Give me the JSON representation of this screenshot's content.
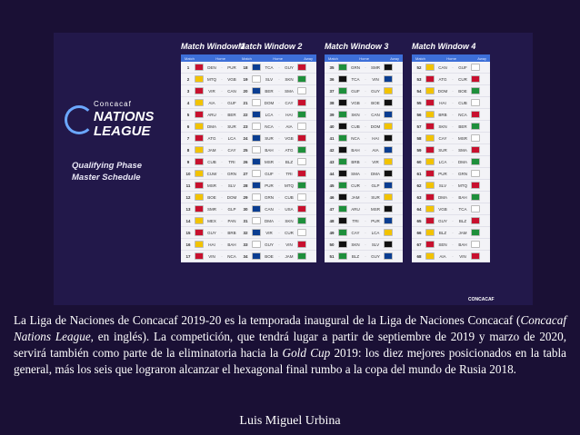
{
  "poster": {
    "logo_small": "Concacaf",
    "logo_word1": "NATIONS",
    "logo_word2": "LEAGUE",
    "schedule_title_line1": "Qualifying Phase",
    "schedule_title_line2": "Master Schedule",
    "footer_logo": "CONCACAF",
    "col_match": "Match",
    "col_home": "Home",
    "col_away": "Away",
    "windows": [
      {
        "title": "Match Window 1",
        "rows": [
          {
            "n": "1",
            "h": "DEN",
            "a": "PUR"
          },
          {
            "n": "2",
            "h": "MTQ",
            "a": "VGB"
          },
          {
            "n": "3",
            "h": "VIR",
            "a": "CAN"
          },
          {
            "n": "4",
            "h": "AIA",
            "a": "GUF"
          },
          {
            "n": "5",
            "h": "ARU",
            "a": "BER"
          },
          {
            "n": "6",
            "h": "DMA",
            "a": "SUR"
          },
          {
            "n": "7",
            "h": "ATG",
            "a": "LCA"
          },
          {
            "n": "8",
            "h": "JAM",
            "a": "CAY"
          },
          {
            "n": "9",
            "h": "CUB",
            "a": "TRI"
          },
          {
            "n": "10",
            "h": "CUW",
            "a": "GRN"
          },
          {
            "n": "11",
            "h": "MSR",
            "a": "SLV"
          },
          {
            "n": "12",
            "h": "BOE",
            "a": "DOM"
          },
          {
            "n": "13",
            "h": "SMR",
            "a": "GLP"
          },
          {
            "n": "14",
            "h": "MEX",
            "a": "PAN"
          },
          {
            "n": "15",
            "h": "GUY",
            "a": "BRB"
          },
          {
            "n": "16",
            "h": "HAI",
            "a": "BAH"
          },
          {
            "n": "17",
            "h": "VIN",
            "a": "NCA"
          }
        ]
      },
      {
        "title": "Match Window 2",
        "rows": [
          {
            "n": "18",
            "h": "TCA",
            "a": "GUY"
          },
          {
            "n": "19",
            "h": "SLV",
            "a": "SKN"
          },
          {
            "n": "20",
            "h": "BER",
            "a": "SMA"
          },
          {
            "n": "21",
            "h": "DOM",
            "a": "CAY"
          },
          {
            "n": "22",
            "h": "LCA",
            "a": "HAI"
          },
          {
            "n": "23",
            "h": "NCA",
            "a": "AIA"
          },
          {
            "n": "24",
            "h": "SUR",
            "a": "VGB"
          },
          {
            "n": "25",
            "h": "BAH",
            "a": "ATG"
          },
          {
            "n": "26",
            "h": "MSR",
            "a": "BLZ"
          },
          {
            "n": "27",
            "h": "GUF",
            "a": "TRI"
          },
          {
            "n": "28",
            "h": "PUR",
            "a": "MTQ"
          },
          {
            "n": "29",
            "h": "GRN",
            "a": "CUB"
          },
          {
            "n": "30",
            "h": "CAN",
            "a": "USA"
          },
          {
            "n": "31",
            "h": "DMA",
            "a": "SKN"
          },
          {
            "n": "32",
            "h": "VIR",
            "a": "CUR"
          },
          {
            "n": "33",
            "h": "GUY",
            "a": "VIN"
          },
          {
            "n": "34",
            "h": "BOE",
            "a": "JAM"
          }
        ]
      },
      {
        "title": "Match Window 3",
        "rows": [
          {
            "n": "35",
            "h": "GRN",
            "a": "SMR"
          },
          {
            "n": "36",
            "h": "TCA",
            "a": "VIN"
          },
          {
            "n": "37",
            "h": "GUF",
            "a": "GUY"
          },
          {
            "n": "38",
            "h": "VGB",
            "a": "BOE"
          },
          {
            "n": "39",
            "h": "SKN",
            "a": "CAN"
          },
          {
            "n": "40",
            "h": "CUB",
            "a": "DOM"
          },
          {
            "n": "41",
            "h": "NCA",
            "a": "HAI"
          },
          {
            "n": "42",
            "h": "BAH",
            "a": "AIA"
          },
          {
            "n": "43",
            "h": "BRB",
            "a": "VIR"
          },
          {
            "n": "44",
            "h": "SMA",
            "a": "DMA"
          },
          {
            "n": "45",
            "h": "CUR",
            "a": "GLP"
          },
          {
            "n": "46",
            "h": "JAM",
            "a": "SUR"
          },
          {
            "n": "47",
            "h": "ARU",
            "a": "MSR"
          },
          {
            "n": "48",
            "h": "TRI",
            "a": "PUR"
          },
          {
            "n": "49",
            "h": "CAY",
            "a": "LCA"
          },
          {
            "n": "50",
            "h": "SKN",
            "a": "SLV"
          },
          {
            "n": "51",
            "h": "BLZ",
            "a": "GUY"
          }
        ]
      },
      {
        "title": "Match Window 4",
        "rows": [
          {
            "n": "52",
            "h": "CAN",
            "a": "GUF"
          },
          {
            "n": "53",
            "h": "ATG",
            "a": "CUR"
          },
          {
            "n": "54",
            "h": "DOM",
            "a": "BOE"
          },
          {
            "n": "55",
            "h": "HAI",
            "a": "CUB"
          },
          {
            "n": "56",
            "h": "BRB",
            "a": "NCA"
          },
          {
            "n": "57",
            "h": "SKN",
            "a": "BER"
          },
          {
            "n": "58",
            "h": "CAY",
            "a": "MSR"
          },
          {
            "n": "59",
            "h": "SUR",
            "a": "SMA"
          },
          {
            "n": "60",
            "h": "LCA",
            "a": "DMA"
          },
          {
            "n": "61",
            "h": "PUR",
            "a": "GRN"
          },
          {
            "n": "62",
            "h": "SLV",
            "a": "MTQ"
          },
          {
            "n": "63",
            "h": "DMA",
            "a": "BAH"
          },
          {
            "n": "64",
            "h": "VGB",
            "a": "TCA"
          },
          {
            "n": "65",
            "h": "GUY",
            "a": "BLZ"
          },
          {
            "n": "66",
            "h": "BLZ",
            "a": "JAM"
          },
          {
            "n": "67",
            "h": "SEN",
            "a": "BAH"
          },
          {
            "n": "68",
            "h": "AIA",
            "a": "VIN"
          }
        ]
      }
    ]
  },
  "caption": {
    "part1": "La Liga de Naciones de Concacaf 2019-20 es la temporada inaugural de la Liga de Naciones Concacaf (",
    "italic1": "Concacaf Nations League",
    "part2": ", en inglés). La competición, que tendrá lugar a partir de septiembre de 2019 y marzo de 2020, servirá también como parte de la eliminatoria hacia la ",
    "italic2": "Gold Cup",
    "part3": " 2019: los diez mejores posicionados en la tabla general, más los seis que lograron alcanzar el hexagonal final rumbo a la copa del mundo de Rusia 2018."
  },
  "author": "Luis Miguel Urbina",
  "colors": {
    "flag_palette": [
      "#c8102e",
      "#0a3d91",
      "#1e8f3b",
      "#f2c300",
      "#ffffff",
      "#111111"
    ]
  }
}
